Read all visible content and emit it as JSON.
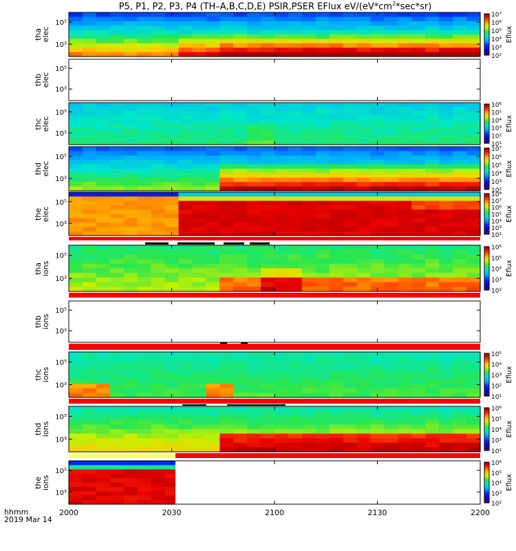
{
  "title": {
    "prefix": "P5, P1, P2, P3, P4 (TH–A,B,C,D,E) PSIR,PSER EFlux eV/(eV*cm",
    "sup": "2",
    "suffix": "*sec*sr)"
  },
  "footer": {
    "line1": "hhmm",
    "line2": "2019 Mar 14"
  },
  "colorbar_label": "Eflux",
  "chart_data": {
    "type": "heatmap",
    "x_tick_labels": [
      "2000",
      "2030",
      "2100",
      "2130",
      "2200"
    ],
    "x_tick_values_min": [
      0,
      30,
      60,
      90,
      120
    ],
    "xlim_min": [
      0,
      120
    ],
    "panels": [
      {
        "id": "tha_elec",
        "probe": "tha",
        "species": "elec",
        "ytick": [
          "10⁵",
          "10³"
        ],
        "cb": [
          "10⁷",
          "10⁶",
          "10⁵",
          "10⁴",
          "10³",
          "10²"
        ],
        "cbrange": [
          2,
          7
        ],
        "data": true
      },
      {
        "id": "thb_elec",
        "probe": "thb",
        "species": "elec",
        "ytick": [
          "10⁵",
          "10³"
        ],
        "cb": [],
        "data": false
      },
      {
        "id": "thc_elec",
        "probe": "thc",
        "species": "elec",
        "ytick": [
          "10⁵",
          "10³"
        ],
        "cb": [
          "10⁶",
          "10⁵",
          "10⁴",
          "10³",
          "10²",
          "10¹"
        ],
        "cbrange": [
          1,
          6
        ],
        "data": true
      },
      {
        "id": "thd_elec",
        "probe": "thd",
        "species": "elec",
        "ytick": [
          "10⁵",
          "10³"
        ],
        "cb": [
          "10⁷",
          "10⁶",
          "10⁵",
          "10⁴",
          "10³",
          "10²"
        ],
        "cbrange": [
          2,
          7
        ],
        "data": true
      },
      {
        "id": "the_elec",
        "probe": "the",
        "species": "elec",
        "ytick": [
          "10⁵",
          "10³"
        ],
        "cb": [
          "10⁸",
          "10⁷",
          "10⁶",
          "10⁵",
          "10⁴",
          "10³",
          "10²"
        ],
        "cbrange": [
          2,
          8
        ],
        "data": true
      },
      {
        "id": "tha_ions",
        "probe": "tha",
        "species": "ions",
        "ytick": [
          "10⁵",
          "10³"
        ],
        "cb": [
          "10⁶",
          "10⁵",
          "10⁴",
          "10³",
          "10²"
        ],
        "cbrange": [
          2,
          6
        ],
        "data": true
      },
      {
        "id": "thb_ions",
        "probe": "thb",
        "species": "ions",
        "ytick": [
          "10⁵",
          "10³"
        ],
        "cb": [],
        "data": false
      },
      {
        "id": "thc_ions",
        "probe": "thc",
        "species": "ions",
        "ytick": [
          "10⁵",
          "10³"
        ],
        "cb": [
          "10⁵",
          "10⁴",
          "10³",
          "10²",
          "10¹"
        ],
        "cbrange": [
          1,
          5
        ],
        "data": true
      },
      {
        "id": "thd_ions",
        "probe": "thd",
        "species": "ions",
        "ytick": [
          "10⁵",
          "10³"
        ],
        "cb": [
          "10⁶",
          "10⁵",
          "10⁴",
          "10³",
          "10²"
        ],
        "cbrange": [
          2,
          6
        ],
        "data": true
      },
      {
        "id": "the_ions",
        "probe": "the",
        "species": "ions",
        "ytick": [
          "10⁵",
          "10³"
        ],
        "cb": [
          "10⁶",
          "10⁵",
          "10⁴",
          "10³",
          "10²"
        ],
        "cbrange": [
          2,
          6
        ],
        "data": true
      }
    ]
  }
}
